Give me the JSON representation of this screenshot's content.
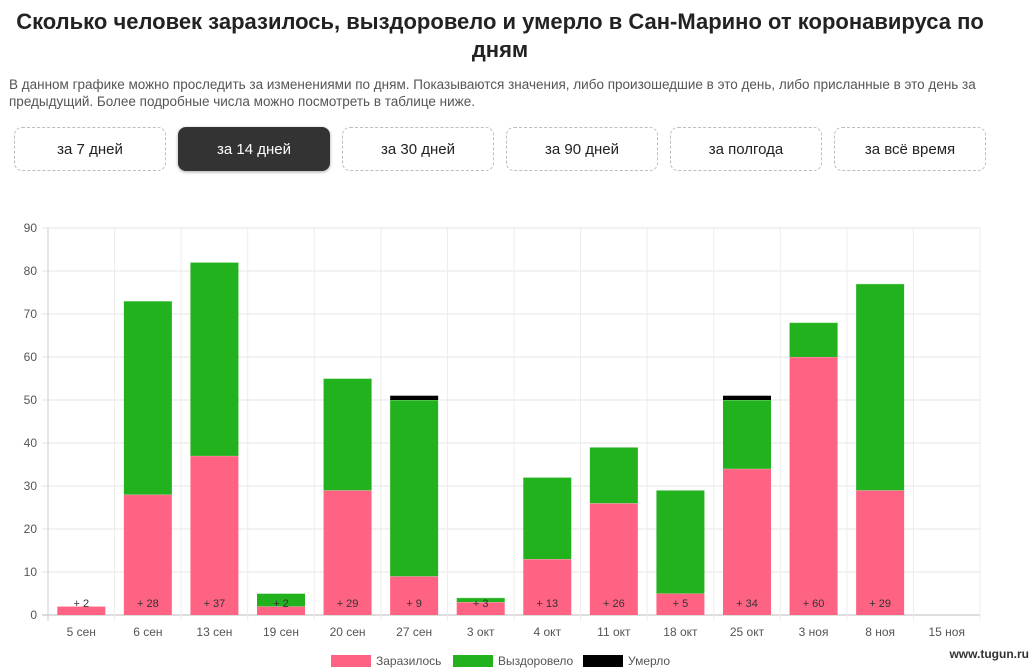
{
  "header": {
    "title": "Сколько человек заразилось, выздоровело и умерло в Сан-Марино от коронавируса по дням",
    "description": "В данном графике можно проследить за изменениями по дням. Показываются значения, либо произошедшие в это день, либо присланные в это день за предыдущий. Более подробные числа можно посмотреть в таблице ниже."
  },
  "tabs": [
    {
      "label": "за 7 дней",
      "active": false
    },
    {
      "label": "за 14 дней",
      "active": true
    },
    {
      "label": "за 30 дней",
      "active": false
    },
    {
      "label": "за 90 дней",
      "active": false
    },
    {
      "label": "за полгода",
      "active": false
    },
    {
      "label": "за всё время",
      "active": false
    }
  ],
  "watermark": "www.tugun.ru",
  "chart_data": {
    "type": "bar",
    "stacked": true,
    "categories": [
      "5 сен",
      "6 сен",
      "13 сен",
      "19 сен",
      "20 сен",
      "27 сен",
      "3 окт",
      "4 окт",
      "11 окт",
      "18 окт",
      "25 окт",
      "3 ноя",
      "8 ноя",
      "15 ноя"
    ],
    "series": [
      {
        "name": "Заразилось",
        "color": "#ff6384",
        "values": [
          2,
          28,
          37,
          2,
          29,
          9,
          3,
          13,
          26,
          5,
          34,
          60,
          29,
          0
        ]
      },
      {
        "name": "Выздоровело",
        "color": "#22b21e",
        "values": [
          0,
          45,
          45,
          3,
          26,
          41,
          1,
          19,
          13,
          24,
          16,
          8,
          48,
          0
        ]
      },
      {
        "name": "Умерло",
        "color": "#000000",
        "values": [
          0,
          0,
          0,
          0,
          0,
          1,
          0,
          0,
          0,
          0,
          1,
          0,
          0,
          0
        ]
      }
    ],
    "bar_labels": [
      "+ 2",
      "+ 28",
      "+ 37",
      "+ 2",
      "+ 29",
      "+ 9",
      "+ 3",
      "+ 13",
      "+ 26",
      "+ 5",
      "+ 34",
      "+ 60",
      "+ 29",
      ""
    ],
    "y_ticks": [
      "0",
      "10",
      "20",
      "30",
      "40",
      "50",
      "60",
      "70",
      "80",
      "90"
    ],
    "ylim": [
      0,
      90
    ],
    "grid": true,
    "legend": "bottom"
  }
}
